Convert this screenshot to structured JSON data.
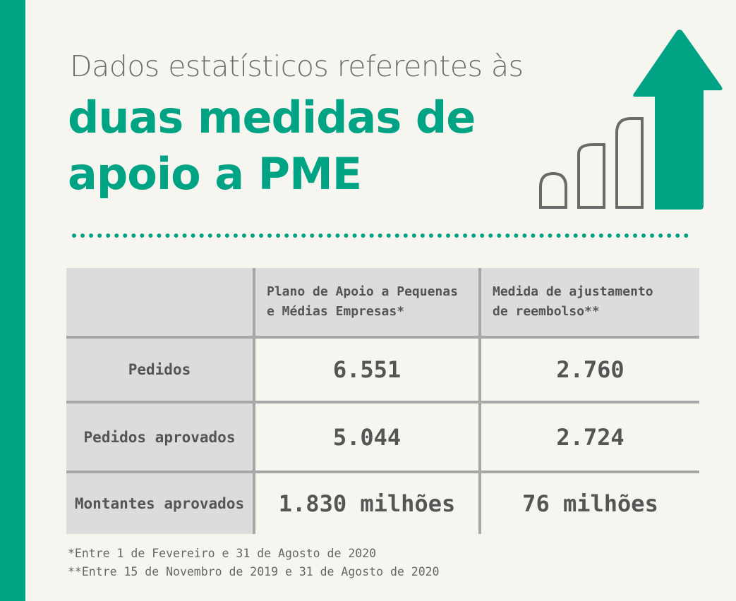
{
  "title": {
    "line1": "Dados estatísticos referentes às",
    "line2": "duas medidas de",
    "line3": "apoio a PME"
  },
  "colors": {
    "accent": "#00a383",
    "background": "#f6f5ef",
    "table_fill": "#dcdcdc",
    "text": "#555555"
  },
  "graphic": {
    "icon": "growth-bars-arrow-icon"
  },
  "table": {
    "columns": [
      "",
      "Plano de Apoio a Pequenas e Médias Empresas*",
      "Medida de ajustamento de reembolso**"
    ],
    "column_lines": [
      [
        "Plano de Apoio a Pequenas",
        "e Médias Empresas*"
      ],
      [
        "Medida de ajustamento",
        "de reembolso**"
      ]
    ],
    "rows": [
      {
        "label": "Pedidos",
        "values": [
          "6.551",
          "2.760"
        ]
      },
      {
        "label": "Pedidos aprovados",
        "values": [
          "5.044",
          "2.724"
        ]
      },
      {
        "label": "Montantes aprovados",
        "values": [
          "1.830 milhões",
          "76 milhões"
        ]
      }
    ]
  },
  "footnotes": [
    "*Entre 1 de Fevereiro e 31 de Agosto de 2020",
    "**Entre 15 de Novembro de 2019 e 31 de Agosto de 2020"
  ]
}
